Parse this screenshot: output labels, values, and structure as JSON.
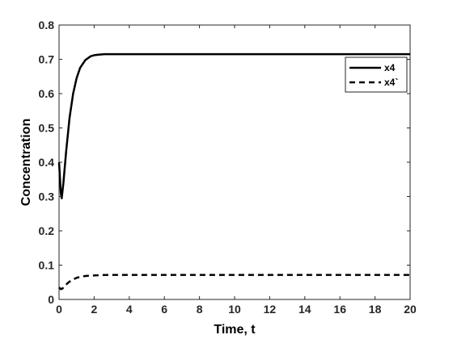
{
  "chart_data": {
    "type": "line",
    "title": "",
    "xlabel": "Time, t",
    "ylabel": "Concentration",
    "xlim": [
      0,
      20
    ],
    "ylim": [
      0,
      0.8
    ],
    "xticks": [
      "0",
      "2",
      "4",
      "6",
      "8",
      "10",
      "12",
      "14",
      "16",
      "18",
      "20"
    ],
    "yticks": [
      "0",
      "0.1",
      "0.2",
      "0.3",
      "0.4",
      "0.5",
      "0.6",
      "0.7",
      "0.8"
    ],
    "grid": false,
    "legend_position": "top-right",
    "series": [
      {
        "name": "x4",
        "style": "solid",
        "color": "#000000",
        "x": [
          0,
          0.1,
          0.15,
          0.25,
          0.4,
          0.6,
          0.8,
          1.0,
          1.2,
          1.5,
          1.8,
          2.0,
          2.3,
          2.6,
          3.0,
          4,
          6,
          8,
          10,
          12,
          14,
          16,
          18,
          20
        ],
        "y": [
          0.4,
          0.31,
          0.295,
          0.34,
          0.43,
          0.53,
          0.6,
          0.645,
          0.675,
          0.698,
          0.709,
          0.712,
          0.714,
          0.715,
          0.715,
          0.715,
          0.715,
          0.715,
          0.715,
          0.715,
          0.715,
          0.715,
          0.715,
          0.715
        ]
      },
      {
        "name": "x4`",
        "style": "dashed",
        "color": "#000000",
        "x": [
          0,
          0.1,
          0.2,
          0.3,
          0.5,
          0.7,
          1.0,
          1.3,
          1.6,
          2.0,
          2.5,
          3,
          4,
          6,
          8,
          10,
          12,
          14,
          16,
          18,
          20
        ],
        "y": [
          0.035,
          0.03,
          0.032,
          0.038,
          0.048,
          0.056,
          0.063,
          0.067,
          0.069,
          0.07,
          0.071,
          0.0715,
          0.0715,
          0.0715,
          0.0715,
          0.0715,
          0.0715,
          0.0715,
          0.0715,
          0.0715,
          0.0715
        ]
      }
    ]
  }
}
